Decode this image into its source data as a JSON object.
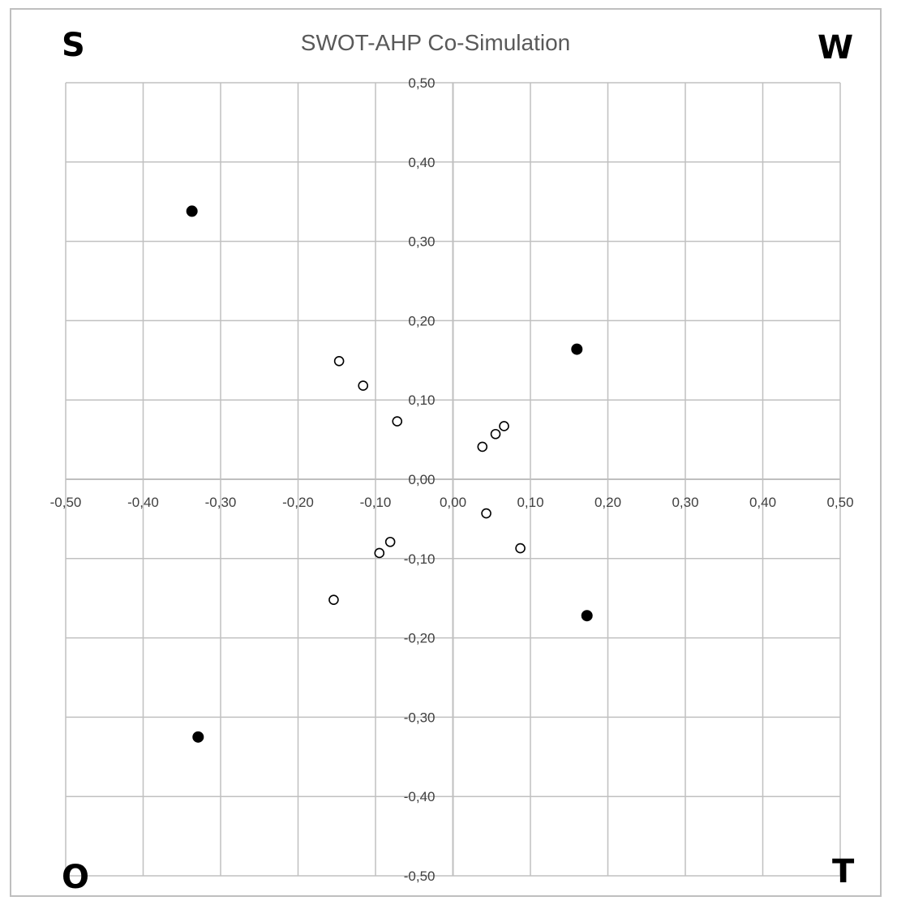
{
  "chart_data": {
    "type": "scatter",
    "title": "SWOT-AHP Co-Simulation",
    "quadrant_labels": {
      "top_left": "S",
      "top_right": "W",
      "bottom_left": "O",
      "bottom_right": "T"
    },
    "xlim": [
      -0.5,
      0.5
    ],
    "ylim": [
      -0.5,
      0.5
    ],
    "x_ticks": [
      "-0,50",
      "-0,40",
      "-0,30",
      "-0,20",
      "-0,10",
      "0,00",
      "0,10",
      "0,20",
      "0,30",
      "0,40",
      "0,50"
    ],
    "y_ticks": [
      "-0,50",
      "-0,40",
      "-0,30",
      "-0,20",
      "-0,10",
      "0,00",
      "0,10",
      "0,20",
      "0,30",
      "0,40",
      "0,50"
    ],
    "grid": true,
    "legend": "none",
    "series": [
      {
        "marker": "filled-circle",
        "color": "#000000",
        "points": [
          {
            "x": -0.337,
            "y": 0.338
          },
          {
            "x": 0.16,
            "y": 0.164
          },
          {
            "x": 0.173,
            "y": -0.172
          },
          {
            "x": -0.329,
            "y": -0.325
          }
        ]
      },
      {
        "marker": "hollow-circle",
        "color": "#000000",
        "points": [
          {
            "x": -0.147,
            "y": 0.149
          },
          {
            "x": -0.116,
            "y": 0.118
          },
          {
            "x": -0.072,
            "y": 0.073
          },
          {
            "x": 0.038,
            "y": 0.041
          },
          {
            "x": 0.055,
            "y": 0.057
          },
          {
            "x": 0.066,
            "y": 0.067
          },
          {
            "x": 0.043,
            "y": -0.043
          },
          {
            "x": 0.087,
            "y": -0.087
          },
          {
            "x": -0.081,
            "y": -0.079
          },
          {
            "x": -0.095,
            "y": -0.093
          },
          {
            "x": -0.154,
            "y": -0.152
          }
        ]
      }
    ]
  }
}
